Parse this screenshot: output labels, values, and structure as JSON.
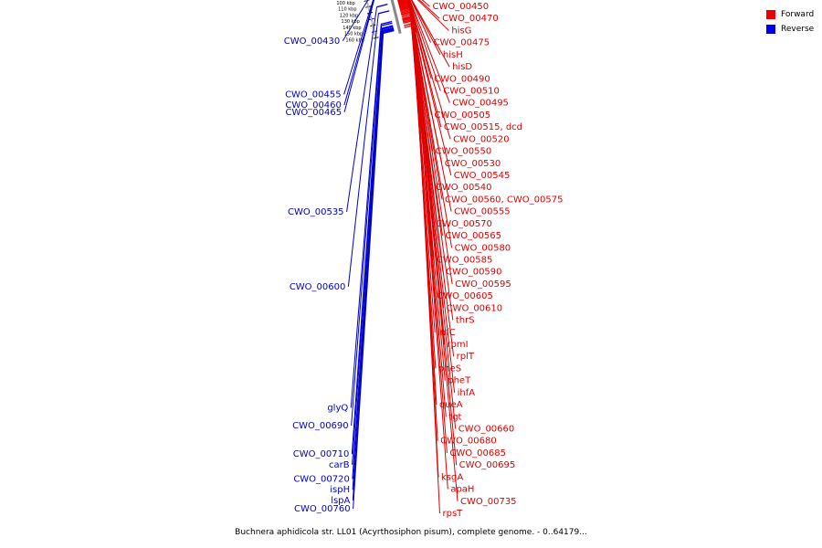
{
  "legend": {
    "forward": {
      "label": "Forward",
      "color": "#ee0000"
    },
    "reverse": {
      "label": "Reverse",
      "color": "#0000ee"
    }
  },
  "caption": "Buchnera aphidicola str. LL01 (Acyrthosiphon pisum), complete genome. - 0..64179...",
  "ticks": [
    {
      "label": "100 kbp",
      "kbp": 100
    },
    {
      "label": "110 kbp",
      "kbp": 110
    },
    {
      "label": "120 kbp",
      "kbp": 120
    },
    {
      "label": "130 kbp",
      "kbp": 130
    },
    {
      "label": "140 kbp",
      "kbp": 140
    },
    {
      "label": "150 kbp",
      "kbp": 150
    },
    {
      "label": "160 kbp",
      "kbp": 160
    }
  ],
  "forward_genes": [
    {
      "label": "CWO_00450",
      "kbp": 91.5
    },
    {
      "label": "CWO_00470",
      "kbp": 95.0
    },
    {
      "label": "hisG",
      "kbp": 96.0
    },
    {
      "label": "CWO_00475",
      "kbp": 97.0
    },
    {
      "label": "hisH",
      "kbp": 99.0
    },
    {
      "label": "hisD",
      "kbp": 100.0
    },
    {
      "label": "CWO_00490",
      "kbp": 100.5
    },
    {
      "label": "CWO_00510",
      "kbp": 101.0
    },
    {
      "label": "CWO_00495",
      "kbp": 101.5
    },
    {
      "label": "CWO_00505",
      "kbp": 102.5
    },
    {
      "label": "CWO_00515, dcd",
      "kbp": 104.5
    },
    {
      "label": "CWO_00520",
      "kbp": 105.5
    },
    {
      "label": "CWO_00550",
      "kbp": 108.5
    },
    {
      "label": "CWO_00530",
      "kbp": 109.0
    },
    {
      "label": "CWO_00545",
      "kbp": 109.5
    },
    {
      "label": "CWO_00540",
      "kbp": 110.0
    },
    {
      "label": "CWO_00560, CWO_00575",
      "kbp": 110.5
    },
    {
      "label": "CWO_00555",
      "kbp": 111.0
    },
    {
      "label": "CWO_00570",
      "kbp": 112.0
    },
    {
      "label": "CWO_00565",
      "kbp": 113.0
    },
    {
      "label": "CWO_00580",
      "kbp": 114.0
    },
    {
      "label": "CWO_00585",
      "kbp": 115.0
    },
    {
      "label": "CWO_00590",
      "kbp": 116.0
    },
    {
      "label": "CWO_00595",
      "kbp": 117.0
    },
    {
      "label": "CWO_00605",
      "kbp": 118.0
    },
    {
      "label": "CWO_00610",
      "kbp": 119.5
    },
    {
      "label": "thrS",
      "kbp": 121.0
    },
    {
      "label": "infC",
      "kbp": 122.5
    },
    {
      "label": "rpmI",
      "kbp": 124.0
    },
    {
      "label": "rplT",
      "kbp": 125.5
    },
    {
      "label": "pheS",
      "kbp": 127.0
    },
    {
      "label": "pheT",
      "kbp": 129.0
    },
    {
      "label": "ihfA",
      "kbp": 131.0
    },
    {
      "label": "queA",
      "kbp": 133.0
    },
    {
      "label": "tgt",
      "kbp": 135.0
    },
    {
      "label": "CWO_00660",
      "kbp": 137.5
    },
    {
      "label": "CWO_00680",
      "kbp": 140.0
    },
    {
      "label": "CWO_00685",
      "kbp": 141.5
    },
    {
      "label": "CWO_00695",
      "kbp": 143.0
    },
    {
      "label": "ksgA",
      "kbp": 145.0
    },
    {
      "label": "apaH",
      "kbp": 147.0
    },
    {
      "label": "CWO_00735",
      "kbp": 151.0
    },
    {
      "label": "rpsT",
      "kbp": 154.0
    }
  ],
  "reverse_genes": [
    {
      "label": "CWO_00430",
      "kbp": 89.0
    },
    {
      "label": "CWO_00455",
      "kbp": 96.5
    },
    {
      "label": "CWO_00460",
      "kbp": 98.0
    },
    {
      "label": "CWO_00465",
      "kbp": 99.0
    },
    {
      "label": "CWO_00535",
      "kbp": 113.0
    },
    {
      "label": "CWO_00600",
      "kbp": 123.5
    },
    {
      "label": "glyQ",
      "kbp": 140.5
    },
    {
      "label": "CWO_00690",
      "kbp": 143.0
    },
    {
      "label": "CWO_00710",
      "kbp": 147.0
    },
    {
      "label": "carB",
      "kbp": 148.5
    },
    {
      "label": "CWO_00720",
      "kbp": 150.5
    },
    {
      "label": "ispH",
      "kbp": 152.0
    },
    {
      "label": "lspA",
      "kbp": 153.5
    },
    {
      "label": "CWO_00760",
      "kbp": 155.0
    }
  ]
}
